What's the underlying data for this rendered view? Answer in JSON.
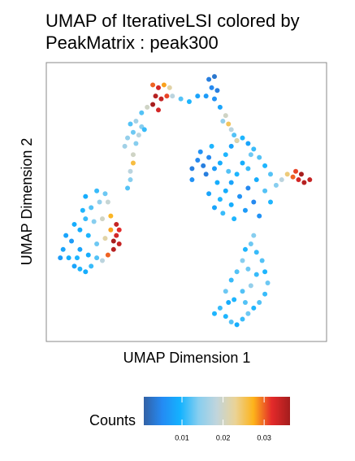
{
  "chart_data": {
    "type": "scatter",
    "title": "UMAP of IterativeLSI colored by PeakMatrix : peak300",
    "x_label": "UMAP Dimension 1",
    "y_label": "UMAP Dimension 2",
    "xlim": [
      0,
      100
    ],
    "ylim": [
      0,
      100
    ],
    "colorbar_label": "Counts",
    "clim": [
      0.0007,
      0.0363
    ],
    "cticks": [
      0.01,
      0.02,
      0.03
    ],
    "colormap": [
      "#3361A5",
      "#248AF3",
      "#14B3FF",
      "#88CEEF",
      "#C1D5DC",
      "#EAD397",
      "#FDB31A",
      "#E42A2A",
      "#A31D1D"
    ],
    "x": [
      6,
      8,
      10,
      12,
      14,
      16,
      9,
      12,
      15,
      18,
      20,
      22,
      24,
      26,
      25,
      23,
      21,
      18,
      15,
      12,
      14,
      17,
      20,
      23,
      25,
      16,
      19,
      14,
      18,
      22,
      7,
      10,
      13,
      5,
      11,
      24,
      26,
      21,
      52,
      54,
      56,
      58,
      55,
      52,
      57,
      60,
      62,
      64,
      66,
      68,
      70,
      72,
      74,
      76,
      78,
      80,
      70,
      68,
      66,
      64,
      62,
      60,
      63,
      66,
      69,
      72,
      74,
      71,
      75,
      78,
      72,
      65,
      61,
      58,
      67,
      76,
      80,
      82,
      73,
      59,
      84,
      86,
      88,
      90,
      92,
      94,
      89,
      91,
      62,
      64,
      66,
      68,
      70,
      72,
      74,
      76,
      78,
      79,
      78,
      77,
      75,
      73,
      71,
      70,
      68,
      66,
      64,
      67,
      70,
      73,
      75,
      72,
      65,
      60,
      71,
      74,
      38,
      40,
      42,
      44,
      39,
      41,
      43,
      38,
      40,
      45,
      48,
      51,
      54,
      58,
      60,
      59,
      61,
      60,
      62,
      57,
      64,
      65,
      66,
      67,
      63,
      68,
      30,
      32,
      34,
      31,
      33,
      35,
      29,
      32,
      34,
      36,
      31,
      31,
      30,
      30,
      29,
      28
    ],
    "values": [
      33,
      30,
      27,
      26,
      25,
      27,
      36,
      33,
      31,
      30,
      29,
      31,
      33,
      35,
      38,
      40,
      37,
      35,
      38,
      40,
      44,
      43,
      44,
      45,
      42,
      48,
      50,
      52,
      54,
      50,
      38,
      42,
      47,
      30,
      30,
      36,
      40,
      53,
      62,
      65,
      63,
      66,
      68,
      58,
      60,
      62,
      64,
      67,
      70,
      72,
      73,
      71,
      69,
      66,
      63,
      60,
      64,
      60,
      57,
      54,
      51,
      48,
      46,
      49,
      52,
      55,
      50,
      47,
      58,
      54,
      62,
      61,
      57,
      53,
      44,
      45,
      50,
      56,
      67,
      70,
      58,
      60,
      59,
      58,
      57,
      58,
      61,
      60,
      12,
      9,
      7,
      6,
      8,
      10,
      12,
      14,
      17,
      21,
      25,
      29,
      32,
      35,
      33,
      29,
      25,
      22,
      18,
      15,
      18,
      20,
      24,
      26,
      14,
      10,
      14,
      38,
      92,
      91,
      92,
      91,
      88,
      87,
      88,
      85,
      83,
      88,
      87,
      86,
      88,
      94,
      95,
      91,
      90,
      87,
      84,
      88,
      81,
      78,
      76,
      74,
      79,
      72,
      78,
      79,
      77,
      75,
      74,
      76,
      73,
      71,
      82,
      84,
      67,
      64,
      61,
      58,
      55,
      70
    ],
    "color_values": [
      0.008,
      0.009,
      0.008,
      0.01,
      0.009,
      0.011,
      0.007,
      0.008,
      0.009,
      0.012,
      0.018,
      0.03,
      0.035,
      0.034,
      0.033,
      0.028,
      0.022,
      0.013,
      0.01,
      0.009,
      0.011,
      0.014,
      0.02,
      0.027,
      0.034,
      0.012,
      0.015,
      0.009,
      0.011,
      0.019,
      0.008,
      0.009,
      0.01,
      0.007,
      0.01,
      0.036,
      0.032,
      0.013,
      0.004,
      0.005,
      0.004,
      0.005,
      0.006,
      0.006,
      0.004,
      0.007,
      0.009,
      0.01,
      0.008,
      0.009,
      0.01,
      0.008,
      0.011,
      0.012,
      0.01,
      0.012,
      0.009,
      0.01,
      0.008,
      0.009,
      0.01,
      0.008,
      0.011,
      0.009,
      0.006,
      0.005,
      0.005,
      0.007,
      0.009,
      0.012,
      0.011,
      0.012,
      0.009,
      0.008,
      0.01,
      0.006,
      0.01,
      0.014,
      0.013,
      0.01,
      0.018,
      0.024,
      0.03,
      0.033,
      0.035,
      0.034,
      0.031,
      0.036,
      0.011,
      0.01,
      0.012,
      0.009,
      0.011,
      0.013,
      0.01,
      0.012,
      0.011,
      0.013,
      0.01,
      0.012,
      0.011,
      0.013,
      0.01,
      0.014,
      0.012,
      0.011,
      0.013,
      0.01,
      0.012,
      0.015,
      0.011,
      0.013,
      0.009,
      0.01,
      0.012,
      0.014,
      0.03,
      0.033,
      0.028,
      0.022,
      0.035,
      0.034,
      0.031,
      0.036,
      0.033,
      0.018,
      0.012,
      0.01,
      0.008,
      0.004,
      0.003,
      0.005,
      0.004,
      0.006,
      0.008,
      0.007,
      0.02,
      0.025,
      0.018,
      0.012,
      0.015,
      0.022,
      0.012,
      0.016,
      0.014,
      0.013,
      0.018,
      0.011,
      0.015,
      0.014,
      0.012,
      0.02,
      0.02,
      0.026,
      0.018,
      0.014,
      0.012,
      0.016
    ]
  }
}
